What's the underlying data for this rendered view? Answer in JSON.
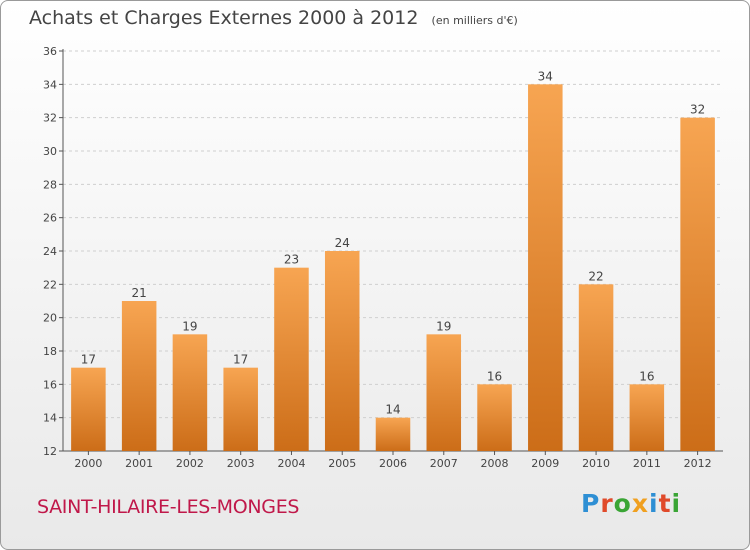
{
  "header": {
    "title": "Achats et Charges Externes 2000 à 2012",
    "subtitle": "(en milliers d'€)"
  },
  "footer": {
    "commune": "SAINT-HILAIRE-LES-MONGES",
    "logo_letters": [
      {
        "char": "P",
        "color": "#2e8fd4"
      },
      {
        "char": "r",
        "color": "#e04a2a"
      },
      {
        "char": "o",
        "color": "#3aa535"
      },
      {
        "char": "x",
        "color": "#f0a020"
      },
      {
        "char": "i",
        "color": "#2e8fd4"
      },
      {
        "char": "t",
        "color": "#e04a2a"
      },
      {
        "char": "i",
        "color": "#3aa535"
      }
    ]
  },
  "chart_data": {
    "type": "bar",
    "categories": [
      "2000",
      "2001",
      "2002",
      "2003",
      "2004",
      "2005",
      "2006",
      "2007",
      "2008",
      "2009",
      "2010",
      "2011",
      "2012"
    ],
    "values": [
      17,
      21,
      19,
      17,
      23,
      24,
      14,
      19,
      16,
      34,
      22,
      16,
      32
    ],
    "title": "Achats et Charges Externes 2000 à 2012",
    "subtitle": "(en milliers d'€)",
    "ylim": [
      12,
      36
    ],
    "yticks": [
      12,
      14,
      16,
      18,
      20,
      22,
      24,
      26,
      28,
      30,
      32,
      34,
      36
    ],
    "grid": true,
    "bar_color_top": "#f7a552",
    "bar_color_bottom": "#cc6d18"
  }
}
